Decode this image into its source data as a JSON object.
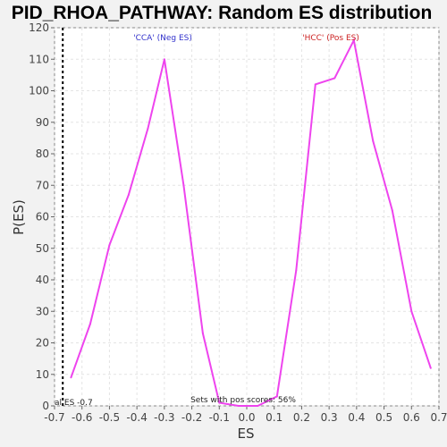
{
  "chart_data": {
    "type": "line",
    "title": "PID_RHOA_PATHWAY: Random ES distribution",
    "xlabel": "ES",
    "ylabel": "P(ES)",
    "xlim": [
      -0.7,
      0.7
    ],
    "ylim": [
      0,
      120
    ],
    "x_ticks": [
      "-0.7",
      "-0.6",
      "-0.5",
      "-0.4",
      "-0.3",
      "-0.2",
      "-0.1",
      "0.0",
      "0.1",
      "0.2",
      "0.3",
      "0.4",
      "0.5",
      "0.6",
      "0.7"
    ],
    "y_ticks": [
      "0",
      "10",
      "20",
      "30",
      "40",
      "50",
      "60",
      "70",
      "80",
      "90",
      "100",
      "110",
      "120"
    ],
    "grid": true,
    "series": [
      {
        "color": "#ee44ee",
        "x": [
          -0.64,
          -0.57,
          -0.5,
          -0.43,
          -0.36,
          -0.3,
          -0.23,
          -0.16,
          -0.1,
          -0.03,
          0.04,
          0.11,
          0.18,
          0.25,
          0.32,
          0.39,
          0.46,
          0.53,
          0.6,
          0.67
        ],
        "y": [
          9,
          26,
          51,
          67,
          88,
          110,
          70,
          23,
          1,
          0,
          0,
          3,
          43,
          102,
          104,
          116,
          84,
          62,
          30,
          12
        ]
      }
    ],
    "annotations": {
      "neg_label": "'CCA' (Neg ES)",
      "pos_label": "'HCC' (Pos ES)",
      "pos_scores": "Sets with pos scores: 56%",
      "actual_es": "al ES -0.7",
      "actual_es_value": -0.67,
      "neg_color": "#3333cc",
      "pos_color": "#cc2222"
    }
  }
}
